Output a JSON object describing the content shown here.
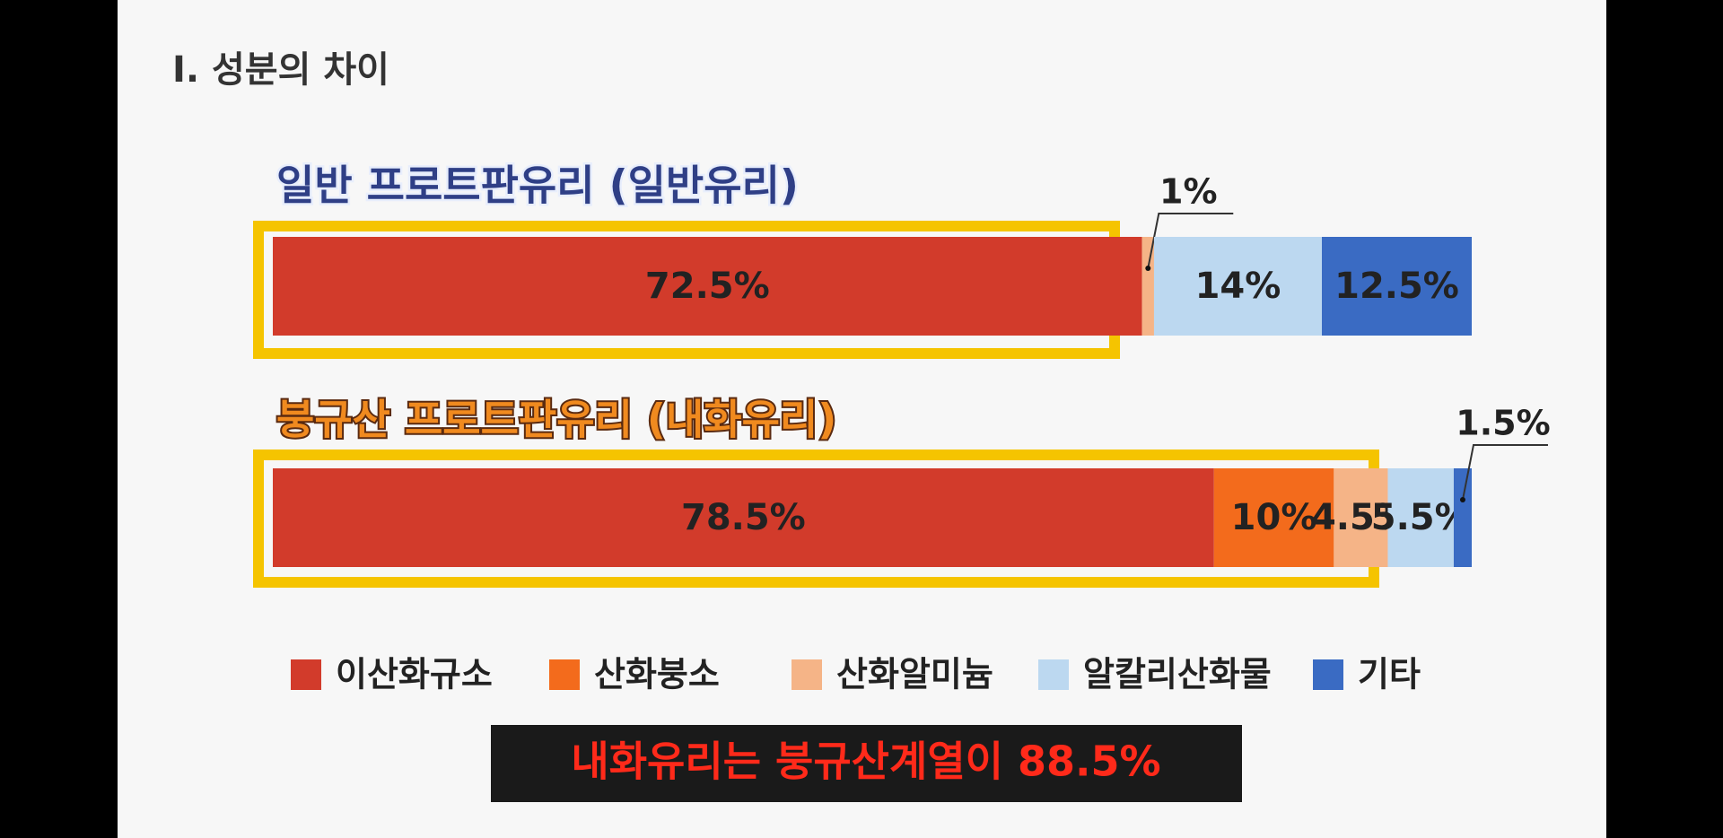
{
  "title": "Ⅰ. 성분의 차이",
  "caption": "내화유리는 붕규산계열이 88.5%",
  "chart_data": {
    "type": "stacked-bar",
    "orientation": "horizontal",
    "categories": [
      "일반 프로트판유리 (일반유리)",
      "붕규산 프로트판유리 (내화유리)"
    ],
    "xlim": [
      0,
      100
    ],
    "legend": "bottom",
    "series": [
      {
        "name": "이산화규소",
        "color": "#d23b2b",
        "values": [
          72.5,
          78.5
        ],
        "value_labels": [
          "72.5%",
          "78.5%"
        ]
      },
      {
        "name": "산화붕소",
        "color": "#f36b1c",
        "values": [
          null,
          10
        ],
        "value_labels": [
          null,
          "10%"
        ]
      },
      {
        "name": "산화알미늄",
        "color": "#f5b487",
        "values": [
          1,
          4.5
        ],
        "value_labels": [
          "1%",
          "4.5%"
        ]
      },
      {
        "name": "알칼리산화물",
        "color": "#bcd8f0",
        "values": [
          14,
          5.5
        ],
        "value_labels": [
          "14%",
          "5.5%"
        ]
      },
      {
        "name": "기타",
        "color": "#3a6bc3",
        "values": [
          12.5,
          1.5
        ],
        "value_labels": [
          "12.5%",
          "1.5%"
        ]
      }
    ]
  }
}
